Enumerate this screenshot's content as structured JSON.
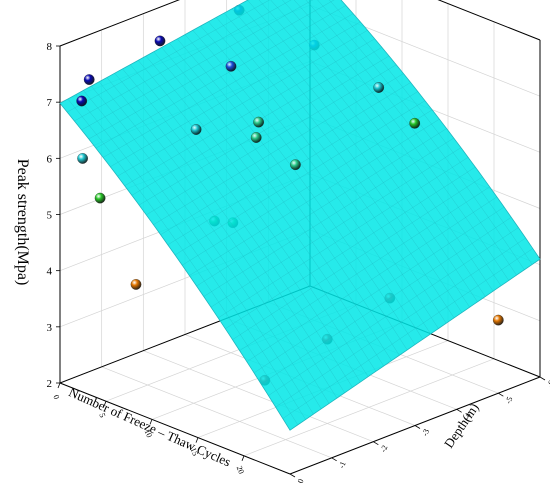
{
  "chart_data": {
    "type": "scatter",
    "subtype": "3d-scatter-with-fitted-surface",
    "title": "",
    "xlabel": "Number of Freeze – Thaw Cycles",
    "ylabel": "Depth(m)",
    "zlabel": "Peak strength(Mpa)",
    "x_ticks": [
      "0",
      "5",
      "10",
      "15",
      "20"
    ],
    "y_ticks": [
      "0",
      "-1",
      "-2",
      "-3",
      "-4",
      "-5",
      "-6"
    ],
    "z_ticks": [
      "2",
      "3",
      "4",
      "5",
      "6",
      "7",
      "8"
    ],
    "xlim": [
      0,
      25
    ],
    "ylim": [
      0,
      -6
    ],
    "zlim": [
      2,
      8
    ],
    "grid": true,
    "surface_color": "#00e6e6",
    "points": [
      {
        "x": 0,
        "y": -5.9,
        "z": 7.4,
        "color": "#0a0ab4"
      },
      {
        "x": 0,
        "y": -4.3,
        "z": 7.4,
        "color": "#0a0ab4"
      },
      {
        "x": 0,
        "y": -2.4,
        "z": 7.4,
        "color": "#0a0ab4"
      },
      {
        "x": 0,
        "y": -0.7,
        "z": 7.2,
        "color": "#0a0ab4"
      },
      {
        "x": 1,
        "y": -0.3,
        "z": 7.0,
        "color": "#0a0ab4"
      },
      {
        "x": 5,
        "y": -5.0,
        "z": 6.9,
        "color": "#1e50dc"
      },
      {
        "x": 5,
        "y": -3.0,
        "z": 7.1,
        "color": "#1e50dc"
      },
      {
        "x": 2,
        "y": -0.1,
        "z": 6.1,
        "color": "#1ec8d2"
      },
      {
        "x": 8,
        "y": -1.5,
        "z": 6.6,
        "color": "#1ec8d2"
      },
      {
        "x": 12,
        "y": -5.0,
        "z": 6.6,
        "color": "#1ec8d2"
      },
      {
        "x": 8,
        "y": -3.0,
        "z": 6.3,
        "color": "#2ccc8c"
      },
      {
        "x": 12,
        "y": -3.0,
        "z": 5.8,
        "color": "#2ccc8c"
      },
      {
        "x": 10,
        "y": -2.5,
        "z": 6.3,
        "color": "#2ccc8c"
      },
      {
        "x": 3,
        "y": -0.3,
        "z": 5.4,
        "color": "#28c828"
      },
      {
        "x": 15,
        "y": -5.2,
        "z": 6.1,
        "color": "#28c828"
      },
      {
        "x": 10,
        "y": -1.5,
        "z": 5.1,
        "color": "#32c85a"
      },
      {
        "x": 12,
        "y": -1.5,
        "z": 5.2,
        "color": "#32c85a"
      },
      {
        "x": 6,
        "y": -0.5,
        "z": 4.0,
        "color": "#e67800"
      },
      {
        "x": 25,
        "y": -5.0,
        "z": 3.3,
        "color": "#e67800"
      },
      {
        "x": 20,
        "y": -3.5,
        "z": 3.8,
        "color": "#d22828"
      },
      {
        "x": 20,
        "y": -2.0,
        "z": 3.5,
        "color": "#d22828"
      },
      {
        "x": 20,
        "y": -0.5,
        "z": 3.2,
        "color": "#d22828"
      }
    ]
  }
}
